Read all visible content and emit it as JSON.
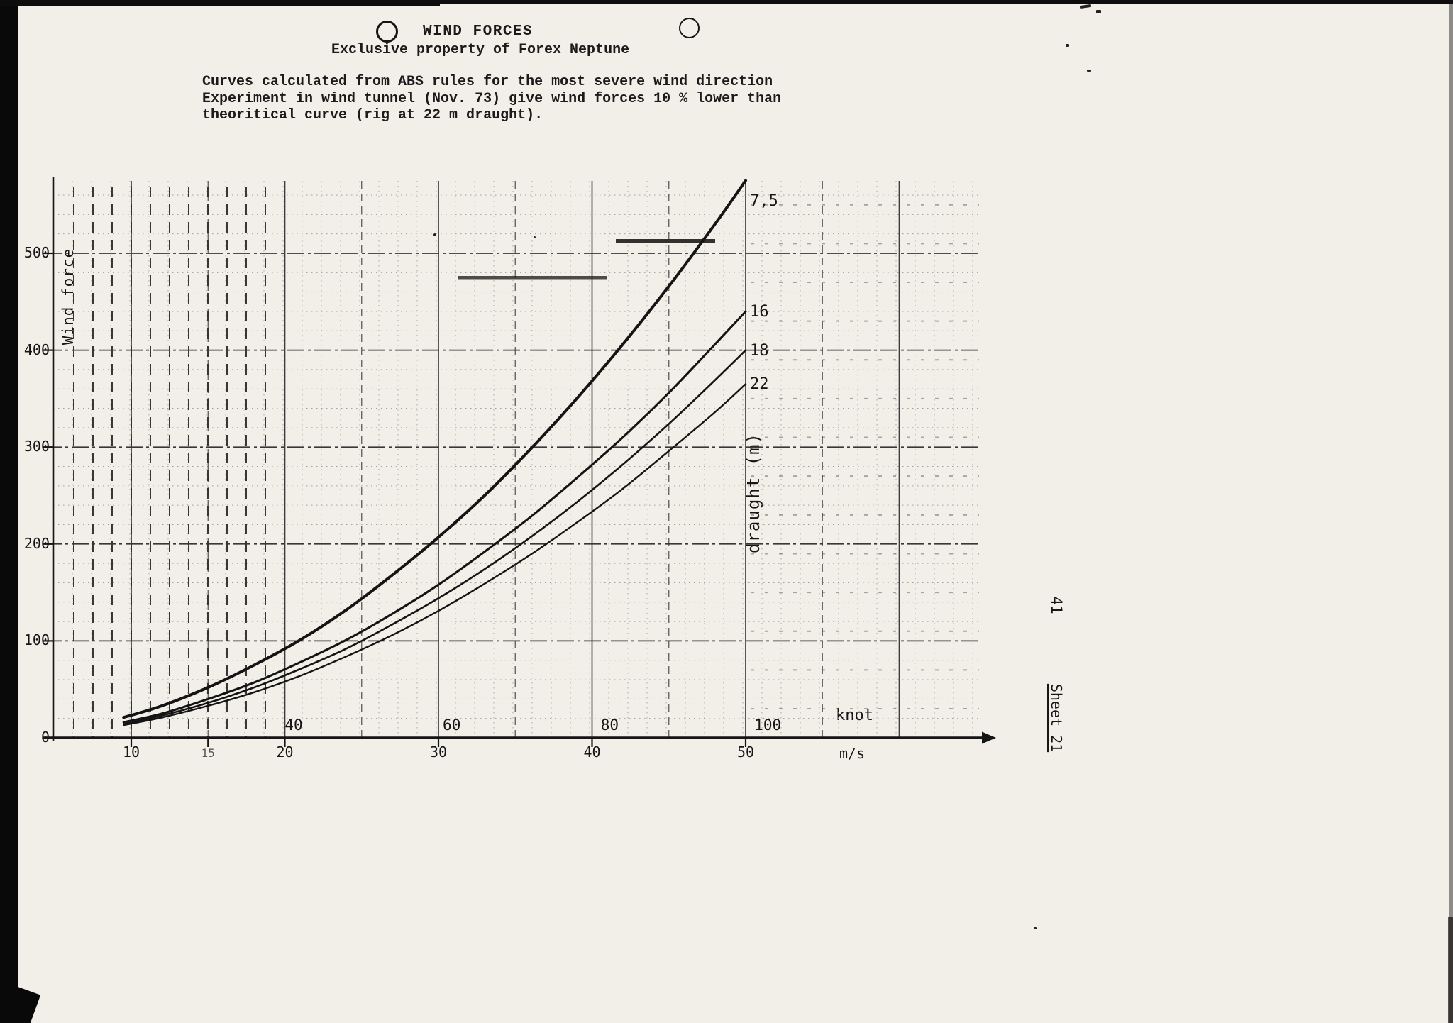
{
  "scan": {
    "page_number": "41",
    "sheet_label": "Sheet 21"
  },
  "header": {
    "title": "WIND FORCES",
    "subtitle": "Exclusive property of Forex Neptune",
    "notes": [
      "Curves calculated from ABS rules for the most severe wind direction",
      "Experiment in wind tunnel (Nov. 73) give wind forces 10 % lower than",
      "theoritical curve (rig at 22 m draught)."
    ]
  },
  "chart_data": {
    "type": "line",
    "title": "WIND FORCES",
    "subtitle": "Exclusive property of Forex Neptune",
    "ylabel": "Wind force",
    "right_axis_label": "draught (m)",
    "x_axis_units": [
      "knot",
      "m/s"
    ],
    "x_ticks_knot": [
      40,
      60,
      80,
      100
    ],
    "x_ticks_ms": [
      10,
      15,
      20,
      30,
      40,
      50
    ],
    "x_minor_ms": [
      15
    ],
    "y_ticks": [
      0,
      100,
      200,
      300,
      400,
      500
    ],
    "xlim_ms": [
      5,
      65
    ],
    "ylim": [
      0,
      585
    ],
    "grid": true,
    "knot_to_ms": 0.5144,
    "x_ms": [
      9.5,
      12,
      15,
      18,
      21,
      24,
      27,
      30,
      33,
      36,
      39,
      42,
      45,
      48,
      50
    ],
    "series": [
      {
        "name": "7,5",
        "draught_m": 7.5,
        "values": [
          21,
          33,
          52,
          75,
          101,
          132,
          168,
          207,
          250,
          298,
          350,
          406,
          466,
          530,
          575
        ]
      },
      {
        "name": "16",
        "draught_m": 16,
        "values": [
          16,
          25,
          40,
          57,
          78,
          101,
          128,
          158,
          192,
          228,
          268,
          310,
          356,
          406,
          440
        ]
      },
      {
        "name": "18",
        "draught_m": 18,
        "values": [
          14,
          23,
          36,
          52,
          71,
          92,
          117,
          144,
          174,
          207,
          243,
          282,
          324,
          369,
          400
        ]
      },
      {
        "name": "22",
        "draught_m": 22,
        "values": [
          13,
          21,
          33,
          47,
          64,
          84,
          106,
          131,
          159,
          189,
          222,
          257,
          296,
          336,
          365
        ]
      }
    ]
  }
}
